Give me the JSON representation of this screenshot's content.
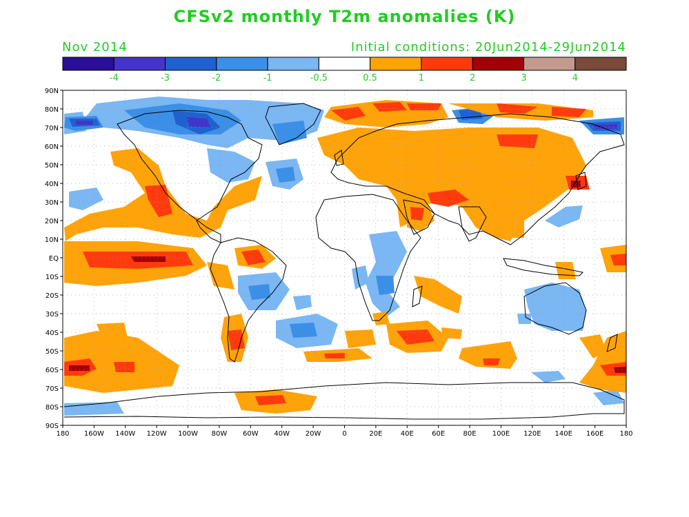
{
  "header": {
    "title": "CFSv2 monthly T2m anomalies (K)",
    "period": "Nov 2014",
    "initial_conditions": "Initial conditions: 20Jun2014-29Jun2014"
  },
  "colorbar": {
    "colors": [
      "#2a0f9a",
      "#4434c9",
      "#1f62cf",
      "#3b8fe6",
      "#7ab7f3",
      "#ffffff",
      "#ffa30a",
      "#ff3b0d",
      "#a40008",
      "#c49a8e",
      "#7a4a3a"
    ],
    "labels": [
      "-4",
      "-3",
      "-2",
      "-1",
      "-0.5",
      "0.5",
      "1",
      "2",
      "3",
      "4"
    ]
  },
  "map": {
    "lat_labels": [
      "90N",
      "80N",
      "70N",
      "60N",
      "50N",
      "40N",
      "30N",
      "20N",
      "10N",
      "EQ",
      "10S",
      "20S",
      "30S",
      "40S",
      "50S",
      "60S",
      "70S",
      "80S",
      "90S"
    ],
    "lon_labels": [
      "180",
      "160W",
      "140W",
      "120W",
      "100W",
      "80W",
      "60W",
      "40W",
      "20W",
      "0",
      "20E",
      "40E",
      "60E",
      "80E",
      "100E",
      "120E",
      "140E",
      "160E",
      "180"
    ]
  }
}
